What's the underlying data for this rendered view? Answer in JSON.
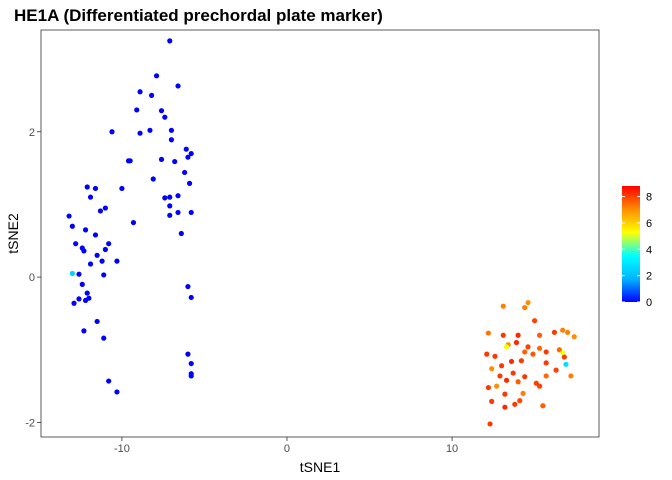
{
  "chart_data": {
    "type": "scatter",
    "title": "HE1A (Differentiated prechordal plate marker)",
    "xlabel": "tSNE1",
    "ylabel": "tSNE2",
    "xlim": [
      -14.9,
      18.9
    ],
    "ylim": [
      -2.2,
      3.4
    ],
    "x_ticks": [
      -10,
      0,
      10
    ],
    "y_ticks": [
      -2,
      0,
      2
    ],
    "grid": false,
    "legend": {
      "placement": "right",
      "type": "colorbar",
      "min": 0,
      "max": 8.8,
      "ticks": [
        0,
        2,
        4,
        6,
        8
      ],
      "colors": [
        "#0000ff",
        "#00b4ff",
        "#00ffff",
        "#ffff00",
        "#ff8c00",
        "#ff0000"
      ]
    },
    "points": [
      {
        "x": -7.1,
        "y": 3.25,
        "v": 0
      },
      {
        "x": -6.6,
        "y": 2.63,
        "v": 0
      },
      {
        "x": -7.9,
        "y": 2.77,
        "v": 0
      },
      {
        "x": -8.9,
        "y": 2.55,
        "v": 0
      },
      {
        "x": -8.2,
        "y": 2.5,
        "v": 0
      },
      {
        "x": -9.1,
        "y": 2.3,
        "v": 0
      },
      {
        "x": -7.6,
        "y": 2.29,
        "v": 0
      },
      {
        "x": -7.4,
        "y": 2.2,
        "v": 0
      },
      {
        "x": -7.0,
        "y": 2.02,
        "v": 0
      },
      {
        "x": -8.9,
        "y": 1.98,
        "v": 0
      },
      {
        "x": -8.3,
        "y": 2.02,
        "v": 0
      },
      {
        "x": -10.6,
        "y": 2.0,
        "v": 0
      },
      {
        "x": -7.0,
        "y": 1.89,
        "v": 0
      },
      {
        "x": -6.1,
        "y": 1.76,
        "v": 0
      },
      {
        "x": -5.8,
        "y": 1.7,
        "v": 0
      },
      {
        "x": -6.0,
        "y": 1.65,
        "v": 0
      },
      {
        "x": -7.6,
        "y": 1.62,
        "v": 0
      },
      {
        "x": -9.6,
        "y": 1.6,
        "v": 0
      },
      {
        "x": -9.5,
        "y": 1.6,
        "v": 0
      },
      {
        "x": -6.8,
        "y": 1.59,
        "v": 0
      },
      {
        "x": -8.1,
        "y": 1.35,
        "v": 0
      },
      {
        "x": -6.2,
        "y": 1.44,
        "v": 0
      },
      {
        "x": -5.9,
        "y": 1.29,
        "v": 0
      },
      {
        "x": -10.0,
        "y": 1.22,
        "v": 0
      },
      {
        "x": -12.1,
        "y": 1.24,
        "v": 0
      },
      {
        "x": -11.6,
        "y": 1.22,
        "v": 0
      },
      {
        "x": -11.9,
        "y": 1.1,
        "v": 0
      },
      {
        "x": -7.4,
        "y": 1.09,
        "v": 0
      },
      {
        "x": -7.1,
        "y": 1.1,
        "v": 0
      },
      {
        "x": -6.6,
        "y": 1.12,
        "v": 0
      },
      {
        "x": -7.1,
        "y": 0.98,
        "v": 0
      },
      {
        "x": -11.0,
        "y": 0.95,
        "v": 0
      },
      {
        "x": -11.3,
        "y": 0.91,
        "v": 0
      },
      {
        "x": -5.8,
        "y": 0.89,
        "v": 0
      },
      {
        "x": -6.6,
        "y": 0.89,
        "v": 0
      },
      {
        "x": -7.1,
        "y": 0.85,
        "v": 0
      },
      {
        "x": -13.2,
        "y": 0.84,
        "v": 0
      },
      {
        "x": -9.3,
        "y": 0.75,
        "v": 0
      },
      {
        "x": -13.0,
        "y": 0.7,
        "v": 0
      },
      {
        "x": -12.2,
        "y": 0.65,
        "v": 0
      },
      {
        "x": -6.4,
        "y": 0.6,
        "v": 0
      },
      {
        "x": -11.6,
        "y": 0.58,
        "v": 0
      },
      {
        "x": -12.8,
        "y": 0.46,
        "v": 0
      },
      {
        "x": -10.8,
        "y": 0.46,
        "v": 0
      },
      {
        "x": -11.0,
        "y": 0.38,
        "v": 0
      },
      {
        "x": -12.4,
        "y": 0.4,
        "v": 0
      },
      {
        "x": -12.3,
        "y": 0.36,
        "v": 0
      },
      {
        "x": -11.5,
        "y": 0.3,
        "v": 0
      },
      {
        "x": -11.2,
        "y": 0.22,
        "v": 0
      },
      {
        "x": -10.3,
        "y": 0.22,
        "v": 0
      },
      {
        "x": -11.9,
        "y": 0.18,
        "v": 0
      },
      {
        "x": -13.0,
        "y": 0.05,
        "v": 2.4
      },
      {
        "x": -12.6,
        "y": 0.04,
        "v": 0
      },
      {
        "x": -11.1,
        "y": 0.03,
        "v": 0
      },
      {
        "x": -12.4,
        "y": -0.1,
        "v": 0
      },
      {
        "x": -6.0,
        "y": -0.13,
        "v": 0
      },
      {
        "x": -12.1,
        "y": -0.22,
        "v": 0
      },
      {
        "x": -12.6,
        "y": -0.3,
        "v": 0
      },
      {
        "x": -5.8,
        "y": -0.28,
        "v": 0
      },
      {
        "x": -12.0,
        "y": -0.29,
        "v": 0
      },
      {
        "x": -12.2,
        "y": -0.32,
        "v": 0
      },
      {
        "x": -12.9,
        "y": -0.36,
        "v": 0
      },
      {
        "x": -11.5,
        "y": -0.61,
        "v": 0
      },
      {
        "x": -12.3,
        "y": -0.74,
        "v": 0
      },
      {
        "x": -11.1,
        "y": -0.84,
        "v": 0
      },
      {
        "x": -6.0,
        "y": -1.06,
        "v": 0
      },
      {
        "x": -5.8,
        "y": -1.19,
        "v": 0
      },
      {
        "x": -5.8,
        "y": -1.33,
        "v": 0
      },
      {
        "x": -5.8,
        "y": -1.36,
        "v": 0
      },
      {
        "x": -10.8,
        "y": -1.43,
        "v": 0
      },
      {
        "x": -10.3,
        "y": -1.58,
        "v": 0
      },
      {
        "x": 14.6,
        "y": -0.35,
        "v": 7.0
      },
      {
        "x": 14.4,
        "y": -0.42,
        "v": 7.2
      },
      {
        "x": 13.1,
        "y": -0.4,
        "v": 7.2
      },
      {
        "x": 15.0,
        "y": -0.6,
        "v": 8.0
      },
      {
        "x": 12.2,
        "y": -0.77,
        "v": 7.3
      },
      {
        "x": 16.2,
        "y": -0.76,
        "v": 8.1
      },
      {
        "x": 16.7,
        "y": -0.73,
        "v": 7.2
      },
      {
        "x": 17.0,
        "y": -0.76,
        "v": 7.2
      },
      {
        "x": 15.3,
        "y": -0.8,
        "v": 7.6
      },
      {
        "x": 14.0,
        "y": -0.8,
        "v": 8.3
      },
      {
        "x": 17.4,
        "y": -0.82,
        "v": 7.0
      },
      {
        "x": 13.1,
        "y": -0.8,
        "v": 8.1
      },
      {
        "x": 13.9,
        "y": -0.9,
        "v": 8.3
      },
      {
        "x": 13.4,
        "y": -0.93,
        "v": 7.0
      },
      {
        "x": 13.3,
        "y": -0.96,
        "v": 5.2
      },
      {
        "x": 14.6,
        "y": -0.96,
        "v": 8.0
      },
      {
        "x": 15.3,
        "y": -0.98,
        "v": 7.5
      },
      {
        "x": 16.5,
        "y": -1.0,
        "v": 7.5
      },
      {
        "x": 15.7,
        "y": -1.03,
        "v": 8.1
      },
      {
        "x": 14.4,
        "y": -1.03,
        "v": 7.6
      },
      {
        "x": 16.7,
        "y": -1.04,
        "v": 5.2
      },
      {
        "x": 14.9,
        "y": -1.06,
        "v": 7.7
      },
      {
        "x": 12.1,
        "y": -1.06,
        "v": 8.1
      },
      {
        "x": 12.6,
        "y": -1.09,
        "v": 8.1
      },
      {
        "x": 16.8,
        "y": -1.1,
        "v": 8.1
      },
      {
        "x": 13.6,
        "y": -1.16,
        "v": 8.3
      },
      {
        "x": 14.2,
        "y": -1.15,
        "v": 8.1
      },
      {
        "x": 15.7,
        "y": -1.18,
        "v": 8.1
      },
      {
        "x": 16.9,
        "y": -1.2,
        "v": 2.8
      },
      {
        "x": 13.0,
        "y": -1.22,
        "v": 8.1
      },
      {
        "x": 12.4,
        "y": -1.26,
        "v": 7.0
      },
      {
        "x": 16.3,
        "y": -1.28,
        "v": 8.0
      },
      {
        "x": 13.7,
        "y": -1.32,
        "v": 8.1
      },
      {
        "x": 12.9,
        "y": -1.36,
        "v": 8.1
      },
      {
        "x": 15.7,
        "y": -1.36,
        "v": 7.5
      },
      {
        "x": 17.2,
        "y": -1.36,
        "v": 7.2
      },
      {
        "x": 14.4,
        "y": -1.37,
        "v": 8.1
      },
      {
        "x": 13.3,
        "y": -1.42,
        "v": 8.3
      },
      {
        "x": 14.0,
        "y": -1.44,
        "v": 7.6
      },
      {
        "x": 15.1,
        "y": -1.46,
        "v": 8.0
      },
      {
        "x": 15.3,
        "y": -1.5,
        "v": 8.0
      },
      {
        "x": 12.7,
        "y": -1.5,
        "v": 7.0
      },
      {
        "x": 12.2,
        "y": -1.52,
        "v": 8.1
      },
      {
        "x": 14.3,
        "y": -1.6,
        "v": 7.2
      },
      {
        "x": 13.2,
        "y": -1.61,
        "v": 8.1
      },
      {
        "x": 14.1,
        "y": -1.7,
        "v": 7.9
      },
      {
        "x": 12.4,
        "y": -1.71,
        "v": 8.1
      },
      {
        "x": 13.8,
        "y": -1.75,
        "v": 8.1
      },
      {
        "x": 15.5,
        "y": -1.77,
        "v": 7.6
      },
      {
        "x": 13.2,
        "y": -1.79,
        "v": 8.3
      },
      {
        "x": 12.3,
        "y": -2.02,
        "v": 8.1
      }
    ]
  }
}
